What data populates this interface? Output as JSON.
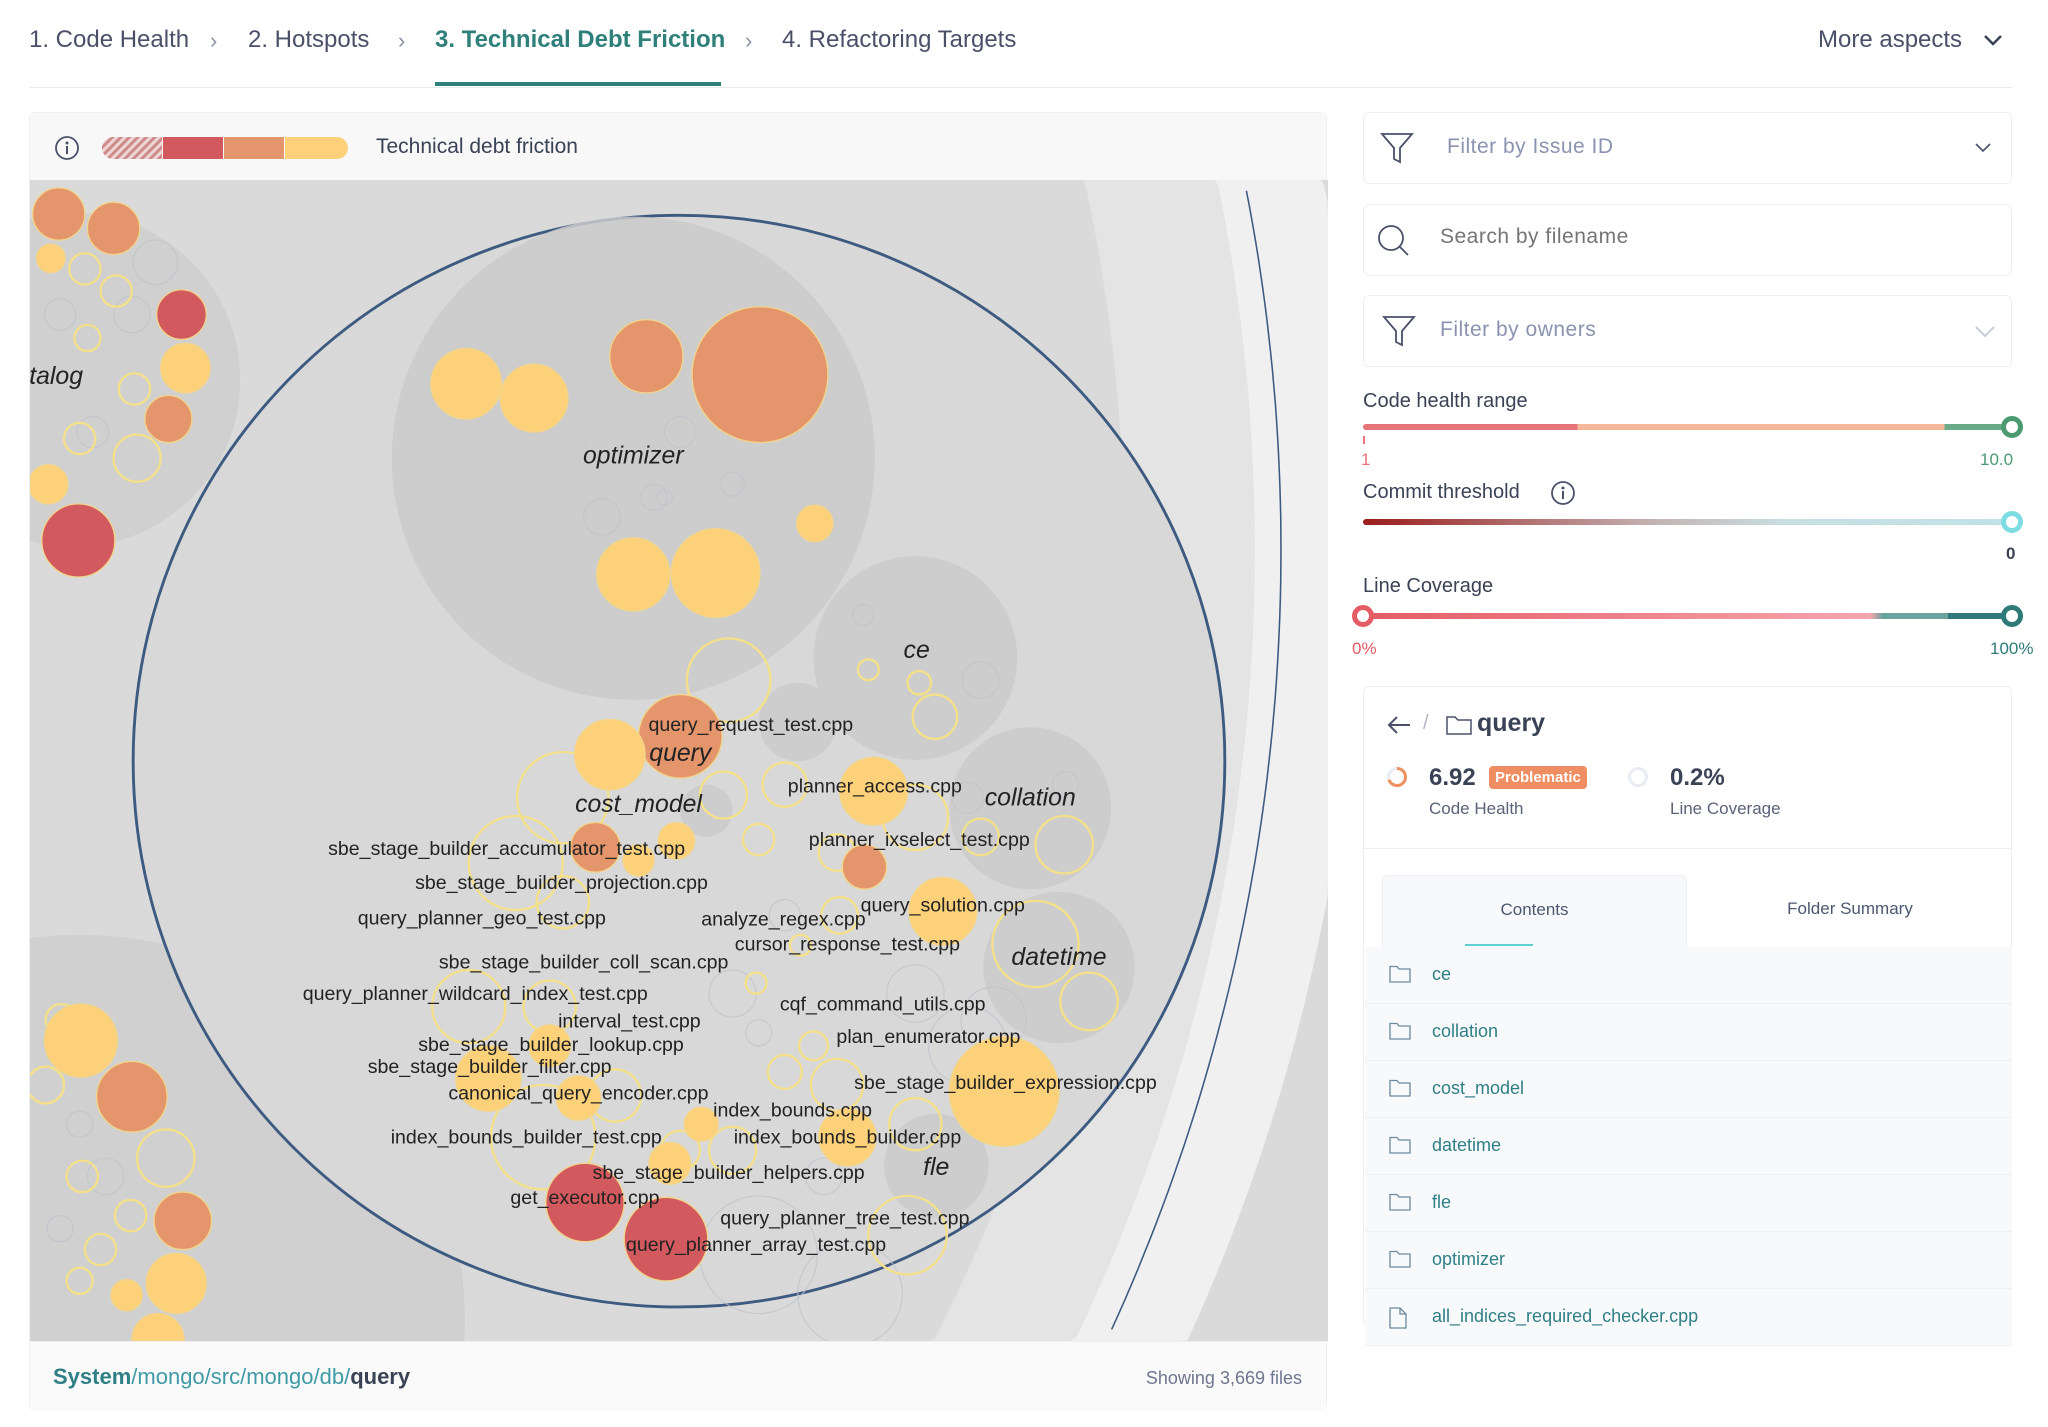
{
  "nav": {
    "steps": [
      "1. Code Health",
      "2. Hotspots",
      "3. Technical Debt Friction",
      "4. Refactoring Targets"
    ],
    "active_step": 2,
    "more_aspects": "More aspects"
  },
  "map": {
    "legend_title": "Technical debt friction",
    "legend_colors": [
      "#d9a0a0",
      "#d25a5e",
      "#e4956b",
      "#fdd17a"
    ],
    "colors": {
      "red": "#d25a5e",
      "orange": "#e4956b",
      "yellow": "#fdd17a",
      "folder": "#cecece",
      "selected_ring": "#3d5a80"
    },
    "folder_labels": [
      "optimizer",
      "ce",
      "query",
      "cost_model",
      "collation",
      "datetime",
      "fle",
      "talog"
    ],
    "file_labels": [
      "query_request_test.cpp",
      "planner_access.cpp",
      "sbe_stage_builder_accumulator_test.cpp",
      "planner_ixselect_test.cpp",
      "sbe_stage_builder_projection.cpp",
      "query_solution.cpp",
      "query_planner_geo_test.cpp",
      "analyze_regex.cpp",
      "cursor_response_test.cpp",
      "sbe_stage_builder_coll_scan.cpp",
      "query_planner_wildcard_index_test.cpp",
      "interval_test.cpp",
      "cqf_command_utils.cpp",
      "sbe_stage_builder_lookup.cpp",
      "plan_enumerator.cpp",
      "sbe_stage_builder_filter.cpp",
      "sbe_stage_builder_expression.cpp",
      "canonical_query_encoder.cpp",
      "index_bounds.cpp",
      "index_bounds_builder_test.cpp",
      "index_bounds_builder.cpp",
      "sbe_stage_builder_helpers.cpp",
      "get_executor.cpp",
      "query_planner_tree_test.cpp",
      "query_planner_array_test.cpp"
    ],
    "path": {
      "root": "System",
      "middle": "/mongo/src/mongo/db/",
      "current": "query"
    },
    "file_count": "Showing 3,669 files"
  },
  "filters": {
    "issue_placeholder": "Filter by Issue ID",
    "search_placeholder": "Search by filename",
    "owners_placeholder": "Filter by owners",
    "code_health": {
      "label": "Code health range",
      "min": "1",
      "max": "10.0"
    },
    "commit_threshold": {
      "label": "Commit threshold",
      "value": "0"
    },
    "line_coverage": {
      "label": "Line Coverage",
      "min": "0%",
      "max": "100%"
    }
  },
  "folder": {
    "name": "query",
    "code_health": "6.92",
    "code_health_fraction": 0.692,
    "badge": "Problematic",
    "code_health_label": "Code Health",
    "coverage": "0.2%",
    "coverage_label": "Line Coverage",
    "tabs": [
      "Contents",
      "Folder Summary"
    ],
    "items": [
      {
        "name": "ce",
        "type": "folder"
      },
      {
        "name": "collation",
        "type": "folder"
      },
      {
        "name": "cost_model",
        "type": "folder"
      },
      {
        "name": "datetime",
        "type": "folder"
      },
      {
        "name": "fle",
        "type": "folder"
      },
      {
        "name": "optimizer",
        "type": "folder"
      },
      {
        "name": "all_indices_required_checker.cpp",
        "type": "file"
      }
    ]
  }
}
